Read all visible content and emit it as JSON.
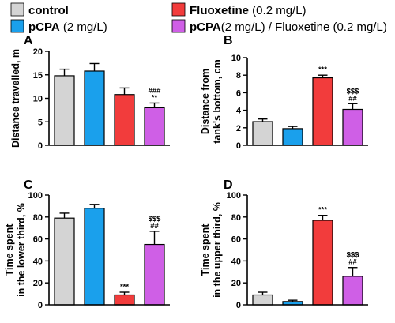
{
  "legend": {
    "items": [
      {
        "label_bold": "control",
        "label_rest": "",
        "color": "#d4d4d4"
      },
      {
        "label_bold": "pCPA",
        "label_rest": " (2 mg/L)",
        "color": "#1aa0ec"
      },
      {
        "label_bold": "Fluoxetine",
        "label_rest": " (0.2 mg/L)",
        "color": "#f23c3c"
      },
      {
        "label_bold": "pCPA",
        "label_rest": "(2 mg/L) / Fluoxetine (0.2 mg/L)",
        "color": "#cf5fe6"
      }
    ]
  },
  "chart_data": [
    {
      "type": "bar",
      "panel_letter": "A",
      "categories": [
        "control",
        "pCPA (2 mg/L)",
        "Fluoxetine (0.2 mg/L)",
        "pCPA(2 mg/L) / Fluoxetine (0.2 mg/L)"
      ],
      "values": [
        14.8,
        15.8,
        10.8,
        8.0
      ],
      "errors": [
        1.4,
        1.6,
        1.4,
        1.0
      ],
      "annotations": [
        "",
        "",
        "",
        "###\n**"
      ],
      "ylabel": "Distance travelled, m",
      "ylim": [
        0,
        20
      ],
      "yticks": [
        "0",
        "5",
        "10",
        "15",
        "20"
      ]
    },
    {
      "type": "bar",
      "panel_letter": "B",
      "categories": [
        "control",
        "pCPA (2 mg/L)",
        "Fluoxetine (0.2 mg/L)",
        "pCPA(2 mg/L) / Fluoxetine (0.2 mg/L)"
      ],
      "values": [
        2.7,
        1.9,
        7.7,
        4.1
      ],
      "errors": [
        0.3,
        0.25,
        0.3,
        0.65
      ],
      "annotations": [
        "",
        "",
        "***",
        "$$$\n##"
      ],
      "ylabel": "Distance from\ntank's bottom, cm",
      "ylim": [
        0,
        10
      ],
      "yticks": [
        "0",
        "2",
        "4",
        "6",
        "8",
        "10"
      ]
    },
    {
      "type": "bar",
      "panel_letter": "C",
      "categories": [
        "control",
        "pCPA (2 mg/L)",
        "Fluoxetine (0.2 mg/L)",
        "pCPA(2 mg/L) / Fluoxetine (0.2 mg/L)"
      ],
      "values": [
        79,
        88,
        9,
        55
      ],
      "errors": [
        4.5,
        3.5,
        2.5,
        12
      ],
      "annotations": [
        "",
        "",
        "***",
        "$$$\n##"
      ],
      "ylabel": "Time spent\nin the lower third, %",
      "ylim": [
        0,
        100
      ],
      "yticks": [
        "0",
        "20",
        "40",
        "60",
        "80",
        "100"
      ]
    },
    {
      "type": "bar",
      "panel_letter": "D",
      "categories": [
        "control",
        "pCPA (2 mg/L)",
        "Fluoxetine (0.2 mg/L)",
        "pCPA(2 mg/L) / Fluoxetine (0.2 mg/L)"
      ],
      "values": [
        9,
        3,
        77,
        26
      ],
      "errors": [
        2.5,
        1.2,
        4.5,
        8
      ],
      "annotations": [
        "",
        "",
        "***",
        "$$$\n##"
      ],
      "ylabel": "Time spent\nin the upper third, %",
      "ylim": [
        0,
        100
      ],
      "yticks": [
        "0",
        "20",
        "40",
        "60",
        "80",
        "100"
      ]
    }
  ]
}
